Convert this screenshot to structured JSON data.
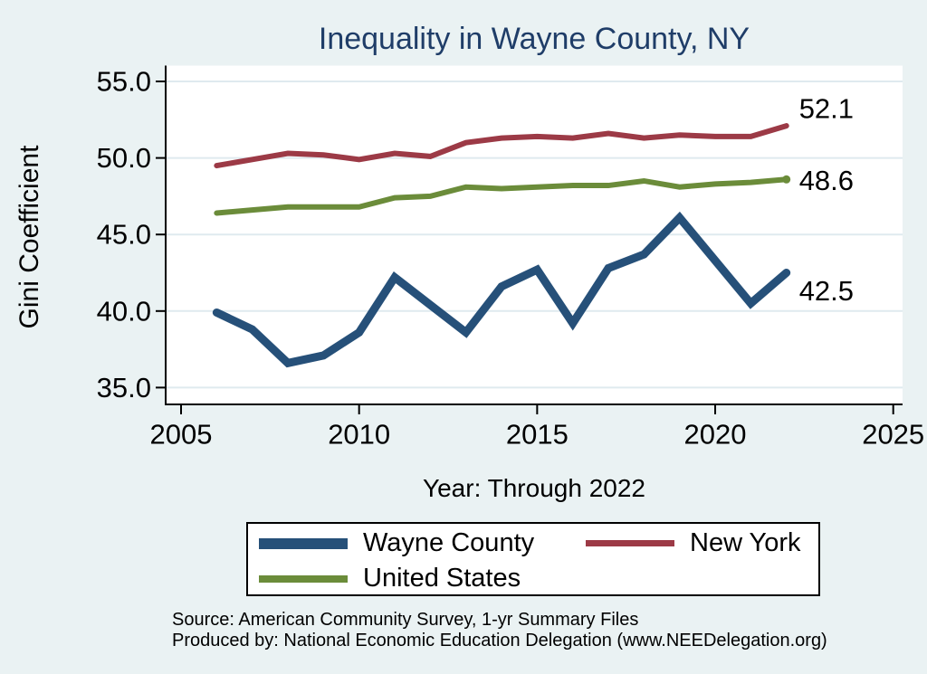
{
  "title": "Inequality in Wayne County, NY",
  "colors": {
    "background": "#eaf2f3",
    "plot_background": "#ffffff",
    "gridline": "#dfeaef",
    "axis": "#000000",
    "title_text": "#1f3d68",
    "wayne_county_line": "#265079",
    "new_york_line": "#9c3a46",
    "united_states_line": "#6b8c3a"
  },
  "chart_data": {
    "type": "line",
    "title": "Inequality in Wayne County, NY",
    "xlabel": "Year: Through 2022",
    "ylabel": "Gini Coefficient",
    "x": [
      2006,
      2007,
      2008,
      2009,
      2010,
      2011,
      2012,
      2013,
      2014,
      2015,
      2016,
      2017,
      2018,
      2019,
      2020,
      2021,
      2022
    ],
    "series": [
      {
        "name": "Wayne County",
        "color": "#265079",
        "line_width": 9,
        "values": [
          39.9,
          38.8,
          36.6,
          37.1,
          38.6,
          42.2,
          40.4,
          38.6,
          41.6,
          42.7,
          39.2,
          42.8,
          43.7,
          46.1,
          43.3,
          40.5,
          42.5
        ],
        "end_label": "42.5",
        "end_marker": false
      },
      {
        "name": "New York",
        "color": "#9c3a46",
        "line_width": 6,
        "values": [
          49.5,
          49.9,
          50.3,
          50.2,
          49.9,
          50.3,
          50.1,
          51.0,
          51.3,
          51.4,
          51.3,
          51.6,
          51.3,
          51.5,
          51.4,
          51.4,
          52.1
        ],
        "end_label": "52.1",
        "end_marker": false
      },
      {
        "name": "United States",
        "color": "#6b8c3a",
        "line_width": 6,
        "values": [
          46.4,
          46.6,
          46.8,
          46.8,
          46.8,
          47.4,
          47.5,
          48.1,
          48.0,
          48.1,
          48.2,
          48.2,
          48.5,
          48.1,
          48.3,
          48.4,
          48.6
        ],
        "end_label": "48.6",
        "end_marker": true
      }
    ],
    "xlim": [
      2005,
      2025.3
    ],
    "ylim": [
      35,
      55
    ],
    "xticks": [
      2005,
      2010,
      2015,
      2020,
      2025
    ],
    "xtick_labels": [
      "2005",
      "2010",
      "2015",
      "2020",
      "2025"
    ],
    "yticks": [
      55,
      50,
      45,
      40,
      35
    ],
    "ytick_labels": [
      "55.0",
      "50.0",
      "45.0",
      "40.0",
      "35.0"
    ],
    "grid": true,
    "legend_position": "bottom"
  },
  "legend": {
    "entries": [
      "Wayne County",
      "New York",
      "United States"
    ]
  },
  "source": {
    "line1": "Source: American Community Survey, 1-yr Summary Files",
    "line2": "Produced by: National Economic Education Delegation (www.NEEDelegation.org)"
  }
}
